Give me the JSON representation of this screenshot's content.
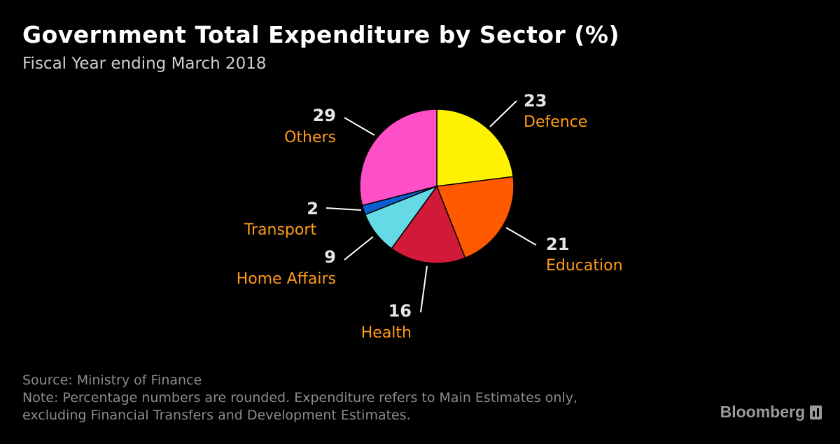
{
  "title": "Government Total Expenditure by Sector (%)",
  "subtitle": "Fiscal Year ending March 2018",
  "footer": {
    "source": "Source: Ministry of Finance",
    "note_line1": "Note: Percentage numbers are rounded. Expenditure refers to Main Estimates only,",
    "note_line2": "excluding Financial Transfers and Development Estimates."
  },
  "brand": {
    "name": "Bloomberg",
    "icon": "bloomberg-bars-icon"
  },
  "colors": {
    "background": "#000000",
    "category_label": "#ff9a1a",
    "value_label": "#e6e6e6"
  },
  "chart_data": {
    "type": "pie",
    "title": "Government Total Expenditure by Sector (%)",
    "subtitle": "Fiscal Year ending March 2018",
    "slices": [
      {
        "label": "Defence",
        "value": 23,
        "color": "#fff200"
      },
      {
        "label": "Education",
        "value": 21,
        "color": "#ff5a00"
      },
      {
        "label": "Health",
        "value": 16,
        "color": "#d01a38"
      },
      {
        "label": "Home Affairs",
        "value": 9,
        "color": "#66d9e6"
      },
      {
        "label": "Transport",
        "value": 2,
        "color": "#0a5fd0"
      },
      {
        "label": "Others",
        "value": 29,
        "color": "#ff4fc8"
      }
    ],
    "start_angle_deg": 0,
    "direction": "clockwise"
  }
}
